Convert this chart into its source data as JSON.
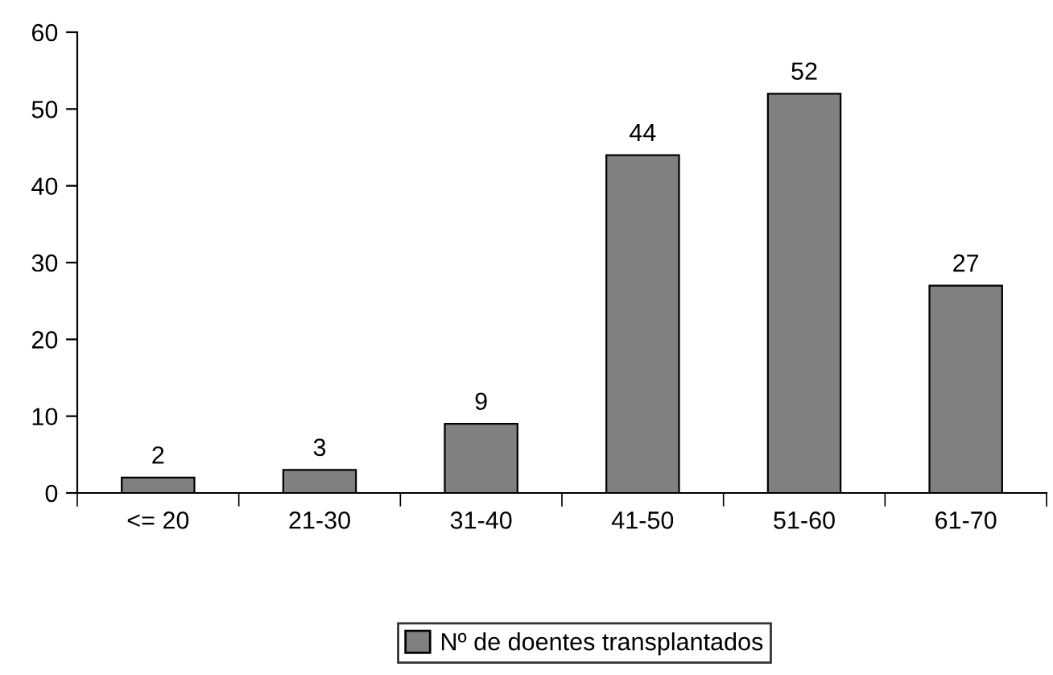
{
  "chart_data": {
    "type": "bar",
    "categories": [
      "<= 20",
      "21-30",
      "31-40",
      "41-50",
      "51-60",
      "61-70"
    ],
    "series": [
      {
        "name": "Nº de doentes transplantados",
        "color": "#808080",
        "values": [
          2,
          3,
          9,
          44,
          52,
          27
        ]
      }
    ],
    "ylim": [
      0,
      60
    ],
    "yticks": [
      0,
      10,
      20,
      30,
      40,
      50,
      60
    ],
    "data_labels": true,
    "grid": false,
    "legend": "bottom"
  }
}
